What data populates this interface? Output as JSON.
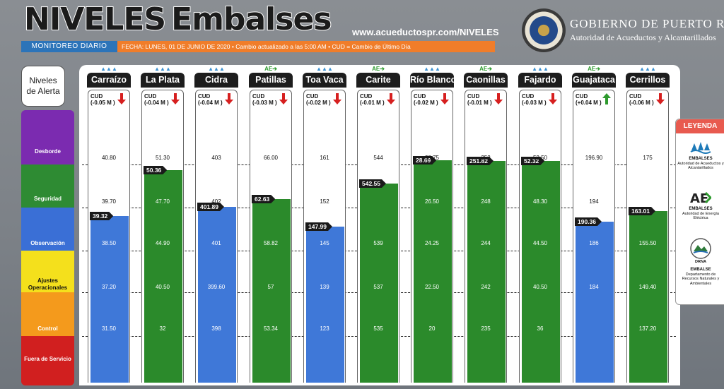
{
  "header": {
    "title_word1": "NIVELES",
    "title_word2": "Embalses",
    "url": "www.acueductospr.com/NIVELES",
    "monitor_label": "MONITOREO DIARIO",
    "date_line": "FECHA: LUNES, 01 DE JUNIO DE 2020 • Cambio actualizado a las 5:00 AM • CUD = Cambio de Último Día",
    "gov_line1": "GOBIERNO DE PUERTO RICO",
    "gov_line2": "Autoridad de Acueductos y Alcantarillados"
  },
  "levels_title": "Niveles de Alerta",
  "levels": [
    {
      "label": "Desborde",
      "color": "#7b2bb0"
    },
    {
      "label": "Seguridad",
      "color": "#2e8b33"
    },
    {
      "label": "Observación",
      "color": "#3a6fd6"
    },
    {
      "label": "Ajustes Operacionales",
      "color": "#f4e01c"
    },
    {
      "label": "Control",
      "color": "#f49a1c"
    },
    {
      "label": "Fuera de Servicio",
      "color": "#d11f1f"
    }
  ],
  "legend": {
    "title": "LEYENDA",
    "items": [
      {
        "heading": "EMBALSES",
        "text": "Autoridad de Acueductos y Alcantarillados"
      },
      {
        "heading": "EMBALSES",
        "text": "Autoridad de Energía Eléctrica"
      },
      {
        "heading": "EMBALSE",
        "text": "Departamento de Recursos Naturales y Ambientales",
        "icon_text": "DRNA"
      }
    ]
  },
  "chart_data": {
    "type": "bar",
    "reservoirs": [
      {
        "name": "Carraízo",
        "cud_label": "CUD",
        "cud": "(-0.05 M )",
        "trend": "down",
        "level": 39.32,
        "level_label": "39.32",
        "level_zone": "observacion",
        "thresholds": [
          "40.80",
          "39.70",
          "38.50",
          "37.20",
          "31.50"
        ],
        "owner": "AAA"
      },
      {
        "name": "La Plata",
        "cud_label": "CUD",
        "cud": "(-0.04 M )",
        "trend": "down",
        "level": 50.36,
        "level_label": "50.36",
        "level_zone": "seguridad",
        "thresholds": [
          "51.30",
          "47.70",
          "44.90",
          "40.50",
          "32"
        ],
        "owner": "AAA"
      },
      {
        "name": "Cidra",
        "cud_label": "CUD",
        "cud": "(-0.04 M )",
        "trend": "down",
        "level": 401.89,
        "level_label": "401.89",
        "level_zone": "observacion",
        "thresholds": [
          "403",
          "402",
          "401",
          "399.60",
          "398"
        ],
        "owner": "AAA"
      },
      {
        "name": "Patillas",
        "cud_label": "CUD",
        "cud": "(-0.03 M )",
        "trend": "down",
        "level": 62.63,
        "level_label": "62.63",
        "level_zone": "seguridad",
        "thresholds": [
          "66.00",
          "",
          "58.82",
          "57",
          "53.34"
        ],
        "owner": "AEE"
      },
      {
        "name": "Toa Vaca",
        "cud_label": "CUD",
        "cud": "(-0.02 M )",
        "trend": "down",
        "level": 147.99,
        "level_label": "147.99",
        "level_zone": "observacion",
        "thresholds": [
          "161",
          "152",
          "145",
          "139",
          "123"
        ],
        "owner": "AAA"
      },
      {
        "name": "Carite",
        "cud_label": "CUD",
        "cud": "(-0.01 M )",
        "trend": "down",
        "level": 542.55,
        "level_label": "542.55",
        "level_zone": "seguridad",
        "thresholds": [
          "544",
          "",
          "539",
          "537",
          "535"
        ],
        "owner": "AEE"
      },
      {
        "name": "Río Blanco",
        "cud_label": "CUD",
        "cud": "(-0.02 M )",
        "trend": "down",
        "level": 28.69,
        "level_label": "28.69",
        "level_zone": "seguridad",
        "thresholds": [
          "28.75",
          "26.50",
          "24.25",
          "22.50",
          "20"
        ],
        "owner": "AAA"
      },
      {
        "name": "Caonillas",
        "cud_label": "CUD",
        "cud": "(-0.01 M )",
        "trend": "down",
        "level": 251.82,
        "level_label": "251.82",
        "level_zone": "seguridad",
        "thresholds": [
          "252",
          "248",
          "244",
          "242",
          "235"
        ],
        "owner": "AEE"
      },
      {
        "name": "Fajardo",
        "cud_label": "CUD",
        "cud": "(-0.03 M )",
        "trend": "down",
        "level": 52.32,
        "level_label": "52.32",
        "level_zone": "seguridad",
        "thresholds": [
          "52.50",
          "48.30",
          "44.50",
          "40.50",
          "36"
        ],
        "owner": "AAA"
      },
      {
        "name": "Guajataca",
        "cud_label": "CUD",
        "cud": "(+0.04 M )",
        "trend": "up",
        "level": 190.36,
        "level_label": "190.36",
        "level_zone": "observacion",
        "thresholds": [
          "196.90",
          "194",
          "186",
          "184",
          ""
        ],
        "owner": "AEE"
      },
      {
        "name": "Cerrillos",
        "cud_label": "CUD",
        "cud": "(-0.06 M )",
        "trend": "down",
        "level": 163.01,
        "level_label": "163.01",
        "level_zone": "seguridad",
        "thresholds": [
          "175",
          "",
          "155.50",
          "149.40",
          "137.20"
        ],
        "owner": "AAA"
      }
    ],
    "zones": [
      "Desborde",
      "Seguridad",
      "Observación",
      "Ajustes Operacionales",
      "Control",
      "Fuera de Servicio"
    ],
    "colors": {
      "seguridad": "#2b8a2b",
      "observacion": "#3f78d8",
      "up": "#2e9a2e",
      "down": "#d61f1f"
    }
  }
}
